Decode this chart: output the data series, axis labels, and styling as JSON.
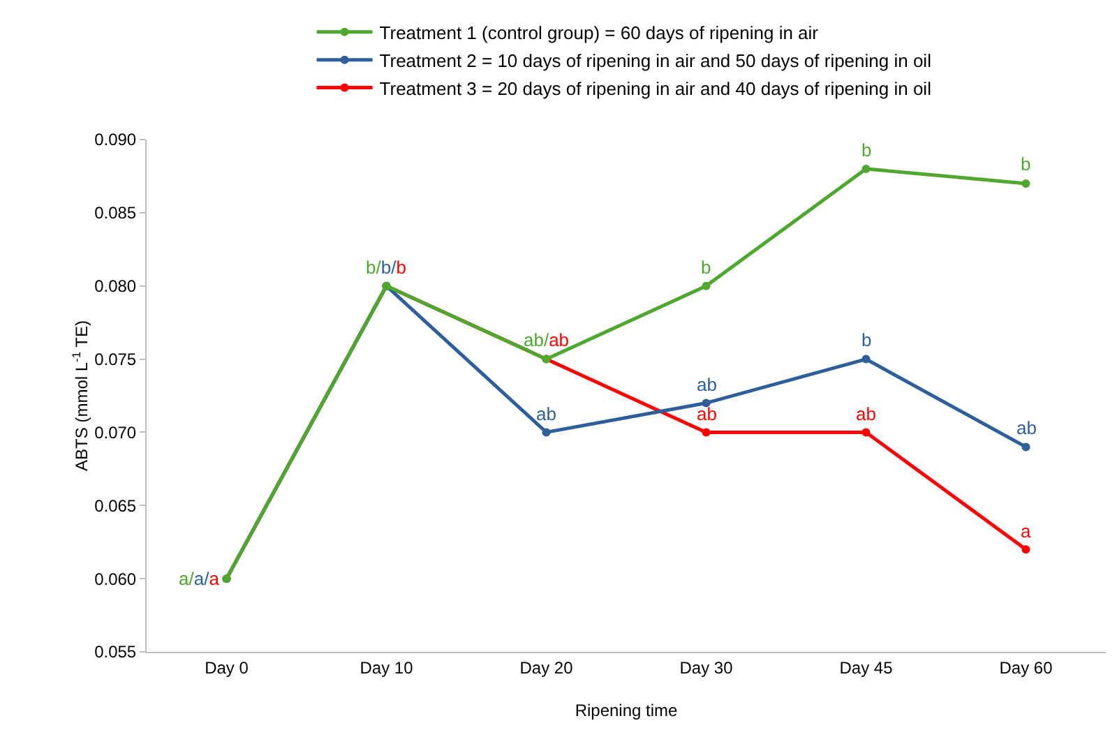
{
  "chart_data": {
    "type": "line",
    "xlabel": "Ripening time",
    "ylabel": "ABTS (mmol L$^{-1}$ TE)",
    "categories": [
      "Day 0",
      "Day 10",
      "Day 20",
      "Day 30",
      "Day 45",
      "Day 60"
    ],
    "series": [
      {
        "name": "Treatment 1 (control group) = 60 days of ripening in air",
        "color": "#4ea72e",
        "values": [
          0.06,
          0.08,
          0.075,
          0.08,
          0.088,
          0.087
        ],
        "value_labels": [
          "a/",
          "b/",
          "ab/",
          "b",
          "b",
          "b"
        ]
      },
      {
        "name": "Treatment 2 = 10 days of ripening in air and 50 days of ripening in oil",
        "color": "#2e5f9a",
        "values": [
          0.06,
          0.08,
          0.07,
          0.072,
          0.075,
          0.069
        ],
        "value_labels": [
          "a/",
          "b/",
          "ab",
          "ab",
          "b",
          "ab"
        ]
      },
      {
        "name": "Treatment 3 = 20 days of ripening in air and 40 days of ripening in oil",
        "color": "#ff0000",
        "values": [
          0.06,
          0.08,
          0.075,
          0.07,
          0.07,
          0.062
        ],
        "value_labels": [
          "a",
          "b",
          "ab",
          "ab",
          "ab",
          "a"
        ]
      }
    ],
    "ylim": [
      0.055,
      0.09
    ],
    "yticks": [
      {
        "value": 0.055,
        "label": "0.055"
      },
      {
        "value": 0.06,
        "label": "0.060"
      },
      {
        "value": 0.065,
        "label": "0.065"
      },
      {
        "value": 0.07,
        "label": "0.070"
      },
      {
        "value": 0.075,
        "label": "0.075"
      },
      {
        "value": 0.08,
        "label": "0.080"
      },
      {
        "value": 0.085,
        "label": "0.085"
      },
      {
        "value": 0.09,
        "label": "0.090"
      }
    ],
    "grid": false,
    "legend": "top",
    "marker": "circle",
    "line_style": "solid"
  }
}
